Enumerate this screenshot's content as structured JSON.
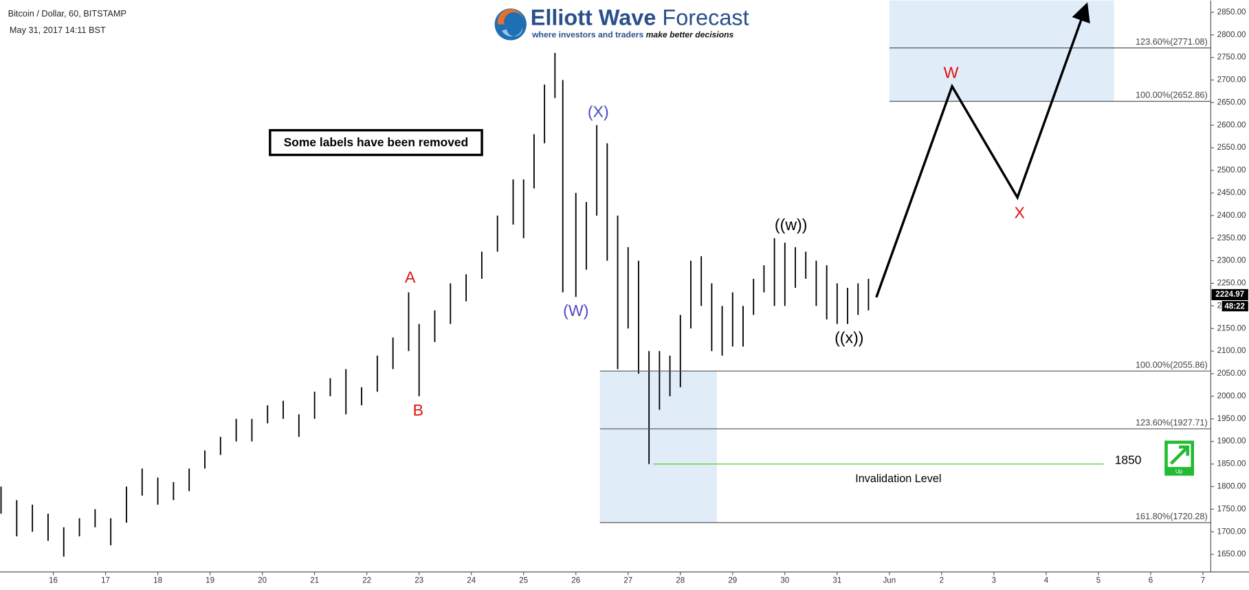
{
  "header": {
    "symbol": "Bitcoin / Dollar, 60, BITSTAMP",
    "timestamp": "May 31, 2017 14:11 BST"
  },
  "logo": {
    "name_bold": "Elliott Wave",
    "name_light": "Forecast",
    "tagline": "where investors and traders",
    "tagline_em": "make better decisions"
  },
  "note": "Some labels have been removed",
  "chart_data": {
    "type": "hilo",
    "color": "#000000",
    "x": [
      15.0,
      15.3,
      15.6,
      15.9,
      16.2,
      16.5,
      16.8,
      17.1,
      17.4,
      17.7,
      18.0,
      18.3,
      18.6,
      18.9,
      19.2,
      19.5,
      19.8,
      20.1,
      20.4,
      20.7,
      21.0,
      21.3,
      21.6,
      21.9,
      22.2,
      22.5,
      22.8,
      23.0,
      23.3,
      23.6,
      23.9,
      24.2,
      24.5,
      24.8,
      25.0,
      25.2,
      25.4,
      25.6,
      25.75,
      26.0,
      26.2,
      26.4,
      26.6,
      26.8,
      27.0,
      27.2,
      27.4,
      27.6,
      27.8,
      28.0,
      28.2,
      28.4,
      28.6,
      28.8,
      29.0,
      29.2,
      29.4,
      29.6,
      29.8,
      30.0,
      30.2,
      30.4,
      30.6,
      30.8,
      31.0,
      31.2,
      31.4,
      31.6
    ],
    "high": [
      1800,
      1770,
      1760,
      1740,
      1710,
      1730,
      1750,
      1730,
      1800,
      1840,
      1820,
      1810,
      1840,
      1880,
      1910,
      1950,
      1950,
      1980,
      1990,
      1960,
      2010,
      2040,
      2060,
      2020,
      2090,
      2130,
      2230,
      2160,
      2190,
      2250,
      2270,
      2320,
      2400,
      2480,
      2480,
      2580,
      2690,
      2760,
      2700,
      2450,
      2430,
      2600,
      2560,
      2400,
      2330,
      2300,
      2100,
      2100,
      2090,
      2180,
      2300,
      2310,
      2250,
      2200,
      2230,
      2200,
      2260,
      2290,
      2350,
      2340,
      2330,
      2320,
      2300,
      2290,
      2250,
      2240,
      2250,
      2260
    ],
    "low": [
      1740,
      1690,
      1700,
      1680,
      1645,
      1690,
      1710,
      1670,
      1720,
      1780,
      1760,
      1770,
      1790,
      1840,
      1870,
      1900,
      1900,
      1940,
      1950,
      1910,
      1950,
      2000,
      1960,
      1980,
      2010,
      2060,
      2100,
      2000,
      2120,
      2160,
      2210,
      2260,
      2320,
      2380,
      2350,
      2460,
      2560,
      2660,
      2230,
      2220,
      2280,
      2400,
      2300,
      2060,
      2150,
      2050,
      1850,
      1970,
      2000,
      2020,
      2150,
      2200,
      2100,
      2090,
      2110,
      2110,
      2180,
      2230,
      2200,
      2200,
      2240,
      2260,
      2200,
      2170,
      2160,
      2160,
      2180,
      2190
    ],
    "xlim": [
      14.98,
      38.15
    ],
    "ylim": [
      1611,
      2876
    ],
    "xticks": [
      16,
      17,
      18,
      19,
      20,
      21,
      22,
      23,
      24,
      25,
      26,
      27,
      28,
      29,
      30,
      31,
      {
        "value": 32,
        "label": "Jun"
      },
      {
        "value": 33,
        "label": "2"
      },
      {
        "value": 34,
        "label": "3"
      },
      {
        "value": 35,
        "label": "4"
      },
      {
        "value": 36,
        "label": "5"
      },
      {
        "value": 37,
        "label": "6"
      },
      {
        "value": 38,
        "label": "7"
      }
    ],
    "yticks": [
      {
        "value": 1650,
        "label": "1650.00"
      },
      {
        "value": 1700,
        "label": "1700.00"
      },
      {
        "value": 1750,
        "label": "1750.00"
      },
      {
        "value": 1800,
        "label": "1800.00"
      },
      {
        "value": 1850,
        "label": "1850.00"
      },
      {
        "value": 1900,
        "label": "1900.00"
      },
      {
        "value": 1950,
        "label": "1950.00"
      },
      {
        "value": 2000,
        "label": "2000.00"
      },
      {
        "value": 2050,
        "label": "2050.00"
      },
      {
        "value": 2100,
        "label": "2100.00"
      },
      {
        "value": 2150,
        "label": "2150.00"
      },
      {
        "value": 2200,
        "label": "2200.00"
      },
      {
        "value": 2250,
        "label": "2250.00"
      },
      {
        "value": 2300,
        "label": "2300.00"
      },
      {
        "value": 2350,
        "label": "2350.00"
      },
      {
        "value": 2400,
        "label": "2400.00"
      },
      {
        "value": 2450,
        "label": "2450.00"
      },
      {
        "value": 2500,
        "label": "2500.00"
      },
      {
        "value": 2550,
        "label": "2550.00"
      },
      {
        "value": 2600,
        "label": "2600.00"
      },
      {
        "value": 2650,
        "label": "2650.00"
      },
      {
        "value": 2700,
        "label": "2700.00"
      },
      {
        "value": 2750,
        "label": "2750.00"
      },
      {
        "value": 2800,
        "label": "2800.00"
      },
      {
        "value": 2850,
        "label": "2850.00"
      }
    ],
    "last_price": 2224.97,
    "countdown": "48:22",
    "zones": [
      {
        "x0": 32,
        "x1": 36.3,
        "y0": 2652.86,
        "y1": 2876
      },
      {
        "x0": 26.46,
        "x1": 28.7,
        "y0": 1720.28,
        "y1": 2055.86
      }
    ],
    "fib_levels": [
      {
        "value": 2771.08,
        "label": "123.60%(2771.08)",
        "x_start": 32
      },
      {
        "value": 2652.86,
        "label": "100.00%(2652.86)",
        "x_start": 32
      },
      {
        "value": 2055.86,
        "label": "100.00%(2055.86)",
        "x_start": 26.46
      },
      {
        "value": 1927.71,
        "label": "123.60%(1927.71)",
        "x_start": 26.46
      },
      {
        "value": 1720.28,
        "label": "161.80%(1720.28)",
        "x_start": 26.46
      }
    ],
    "invalidation": {
      "value": 1850,
      "label": "Invalidation Level",
      "x0": 27.48,
      "x1": 36.1,
      "color": "#66cc33"
    },
    "projection": {
      "x": [
        31.75,
        33.2,
        34.45,
        35.76
      ],
      "y": [
        2219,
        2686,
        2440,
        2862
      ]
    },
    "wave_labels": [
      {
        "text": "A",
        "color": "#e01010"
      },
      {
        "text": "B",
        "color": "#e01010"
      },
      {
        "text": "(W)",
        "color": "#4a4ac8"
      },
      {
        "text": "(X)",
        "color": "#4a4ac8"
      },
      {
        "text": "((w))",
        "color": "#000000"
      },
      {
        "text": "((x))",
        "color": "#000000"
      },
      {
        "text": "W",
        "color": "#e01010"
      },
      {
        "text": "X",
        "color": "#e01010"
      }
    ],
    "signal": "Up"
  }
}
